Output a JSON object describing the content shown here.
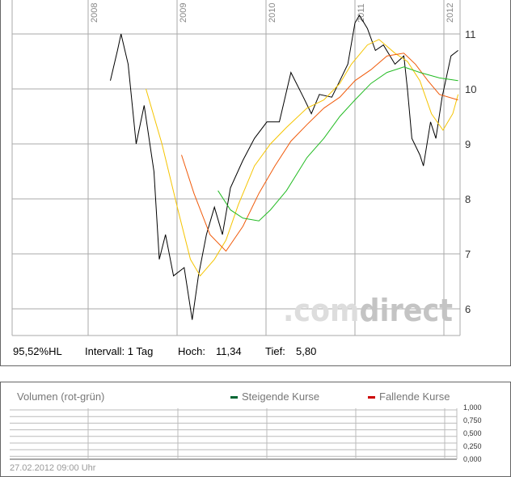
{
  "chart_data": {
    "type": "line",
    "x_ticks": [
      "2008",
      "2009",
      "2010",
      "2011",
      "2012"
    ],
    "y_ticks": [
      "11",
      "10",
      "9",
      "8",
      "7",
      "6"
    ],
    "ylim": [
      5.55,
      11.6
    ],
    "xlim": [
      2007.86,
      2012.19
    ],
    "grid": true,
    "series": [
      {
        "color": "#000000",
        "x": [
          2008.25,
          2008.33,
          2008.37,
          2008.45,
          2008.54,
          2008.63,
          2008.74,
          2008.8,
          2008.87,
          2008.96,
          2009.08,
          2009.17,
          2009.24,
          2009.33,
          2009.42,
          2009.51,
          2009.6,
          2009.74,
          2009.87,
          2010.01,
          2010.15,
          2010.28,
          2010.42,
          2010.51,
          2010.6,
          2010.74,
          2010.83,
          2010.92,
          2011.0,
          2011.05,
          2011.14,
          2011.23,
          2011.32,
          2011.45,
          2011.55,
          2011.59,
          2011.64,
          2011.73,
          2011.77,
          2011.85,
          2011.91,
          2011.98,
          2012.08,
          2012.16
        ],
        "y": [
          10.15,
          10.7,
          11.0,
          10.45,
          9.0,
          9.7,
          8.5,
          6.9,
          7.35,
          6.6,
          6.75,
          5.8,
          6.6,
          7.35,
          7.85,
          7.35,
          8.2,
          8.7,
          9.1,
          9.4,
          9.4,
          10.3,
          9.85,
          9.55,
          9.9,
          9.85,
          10.15,
          10.45,
          11.2,
          11.34,
          11.1,
          10.7,
          10.8,
          10.45,
          10.6,
          10.0,
          9.1,
          8.8,
          8.6,
          9.4,
          9.1,
          9.85,
          10.6,
          10.7
        ]
      },
      {
        "color": "#f5c400",
        "x": [
          2008.65,
          2008.83,
          2009.01,
          2009.15,
          2009.26,
          2009.42,
          2009.55,
          2009.69,
          2009.87,
          2010.05,
          2010.23,
          2010.46,
          2010.65,
          2010.83,
          2010.96,
          2011.14,
          2011.27,
          2011.45,
          2011.59,
          2011.73,
          2011.86,
          2011.99,
          2012.1,
          2012.16
        ],
        "y": [
          10.0,
          9.0,
          7.8,
          6.9,
          6.6,
          6.9,
          7.25,
          7.9,
          8.6,
          9.0,
          9.3,
          9.65,
          9.8,
          10.1,
          10.45,
          10.8,
          10.9,
          10.65,
          10.5,
          10.15,
          9.55,
          9.25,
          9.55,
          9.9
        ]
      },
      {
        "color": "#f05a0a",
        "x": [
          2009.05,
          2009.19,
          2009.37,
          2009.55,
          2009.74,
          2009.92,
          2010.1,
          2010.28,
          2010.46,
          2010.65,
          2010.83,
          2011.0,
          2011.18,
          2011.36,
          2011.55,
          2011.68,
          2011.82,
          2011.95,
          2012.16
        ],
        "y": [
          8.8,
          8.1,
          7.35,
          7.05,
          7.5,
          8.1,
          8.6,
          9.05,
          9.35,
          9.65,
          9.85,
          10.15,
          10.35,
          10.6,
          10.65,
          10.45,
          10.15,
          9.9,
          9.8
        ]
      },
      {
        "color": "#22bb22",
        "x": [
          2009.46,
          2009.6,
          2009.74,
          2009.92,
          2010.05,
          2010.23,
          2010.46,
          2010.65,
          2010.83,
          2011.0,
          2011.18,
          2011.36,
          2011.55,
          2011.73,
          2011.95,
          2012.16
        ],
        "y": [
          8.15,
          7.8,
          7.65,
          7.6,
          7.8,
          8.15,
          8.75,
          9.1,
          9.5,
          9.8,
          10.1,
          10.3,
          10.4,
          10.3,
          10.2,
          10.15
        ]
      }
    ]
  },
  "watermark": {
    "part1": ".com",
    "part2": "direct"
  },
  "info": {
    "hl": "95,52%HL",
    "interval": "Intervall: 1 Tag",
    "high_label": "Hoch:",
    "high": "11,34",
    "low_label": "Tief:",
    "low": "5,80"
  },
  "volume": {
    "title": "Volumen (rot-grün)",
    "legend": [
      {
        "label": "Steigende Kurse",
        "color": "#006633"
      },
      {
        "label": "Fallende Kurse",
        "color": "#cc0000"
      }
    ],
    "y_ticks": [
      "1,000",
      "0,750",
      "0,500",
      "0,250",
      "0,000"
    ]
  },
  "footer": "27.02.2012 09:00 Uhr"
}
